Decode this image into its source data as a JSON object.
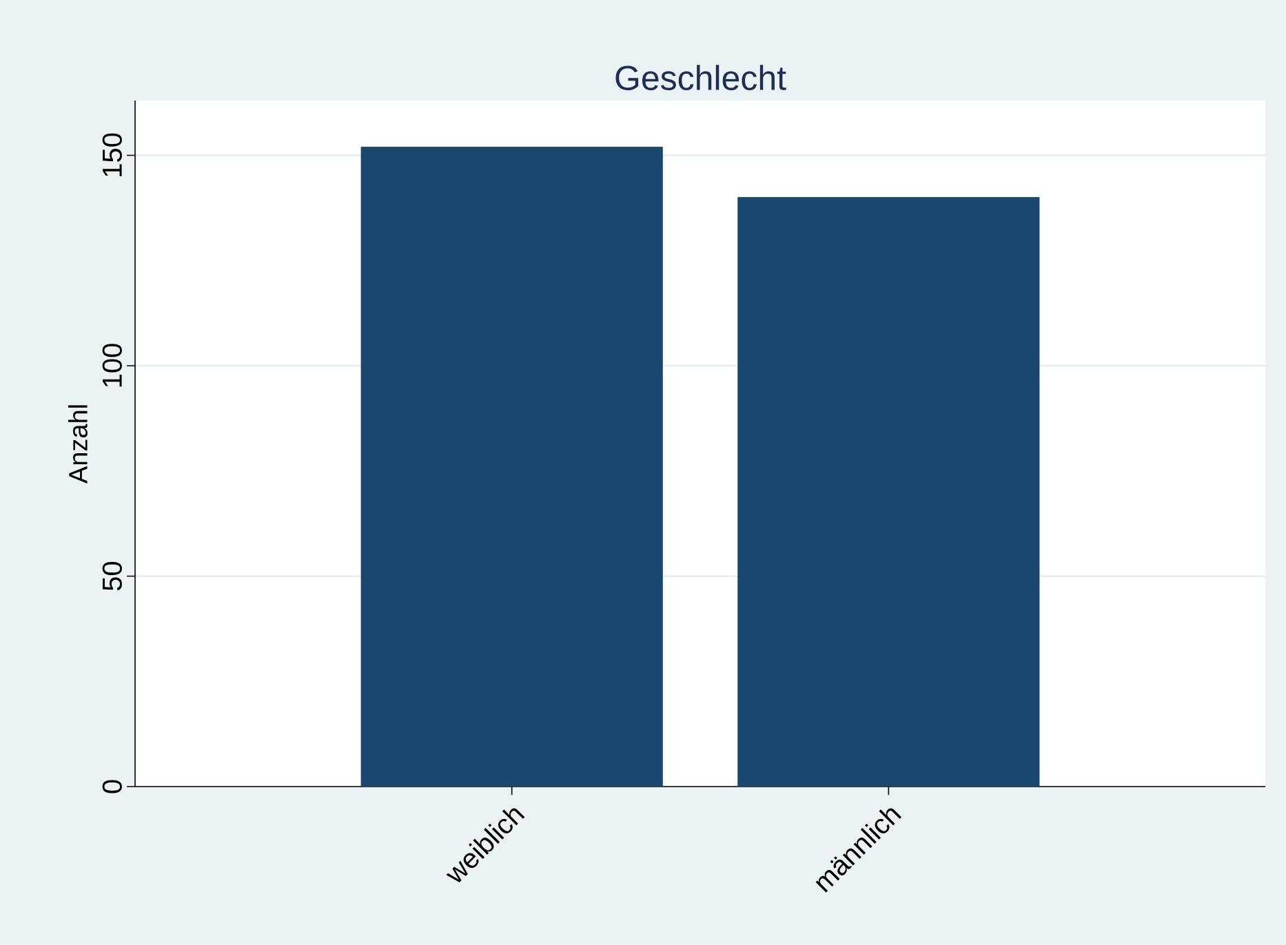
{
  "chart_data": {
    "type": "bar",
    "title": "Geschlecht",
    "ylabel": "Anzahl",
    "categories": [
      "weiblich",
      "männlich"
    ],
    "values": [
      152,
      140
    ],
    "color": "#1a476f",
    "ylim": [
      0,
      163
    ],
    "yticks": [
      0,
      50,
      100,
      150
    ],
    "grid": "y"
  }
}
